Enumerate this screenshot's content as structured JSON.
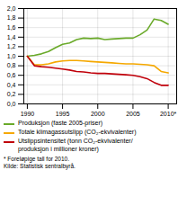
{
  "chart_data": {
    "type": "line",
    "x": [
      1990,
      1991,
      1992,
      1993,
      1994,
      1995,
      1996,
      1997,
      1998,
      1999,
      2000,
      2001,
      2002,
      2003,
      2004,
      2005,
      2006,
      2007,
      2008,
      2009,
      2010
    ],
    "series": [
      {
        "name": "Produksjon (faste 2005-priser)",
        "color": "#6aaa2a",
        "values": [
          1.0,
          1.02,
          1.05,
          1.1,
          1.18,
          1.25,
          1.28,
          1.35,
          1.38,
          1.37,
          1.38,
          1.35,
          1.36,
          1.37,
          1.38,
          1.38,
          1.45,
          1.55,
          1.78,
          1.75,
          1.67
        ]
      },
      {
        "name": "Totale klimagassutslipp (CO₂-ekvivalenter)",
        "color": "#f5a800",
        "values": [
          1.0,
          0.82,
          0.82,
          0.84,
          0.88,
          0.9,
          0.91,
          0.91,
          0.9,
          0.89,
          0.88,
          0.87,
          0.86,
          0.85,
          0.84,
          0.84,
          0.83,
          0.82,
          0.8,
          0.68,
          0.65
        ]
      },
      {
        "name": "Utslippsintensitet (tonn CO₂-ekvivalenter/\nproduksjon i millioner kroner)",
        "color": "#c0000a",
        "values": [
          1.0,
          0.8,
          0.78,
          0.77,
          0.75,
          0.73,
          0.71,
          0.68,
          0.67,
          0.65,
          0.64,
          0.64,
          0.63,
          0.62,
          0.61,
          0.6,
          0.57,
          0.53,
          0.45,
          0.39,
          0.39
        ]
      }
    ],
    "xlim": [
      1989.5,
      2011.2
    ],
    "xticks": [
      1990,
      1995,
      2000,
      2005,
      {
        "value": 2010,
        "label": "2010*"
      }
    ],
    "ylim": [
      0.0,
      2.0
    ],
    "yticks": [
      {
        "value": 0.0,
        "label": "0,0"
      },
      {
        "value": 0.2,
        "label": "0,2"
      },
      {
        "value": 0.4,
        "label": "0,4"
      },
      {
        "value": 0.6,
        "label": "0,6"
      },
      {
        "value": 0.8,
        "label": "0,8"
      },
      {
        "value": 1.0,
        "label": "1,0"
      },
      {
        "value": 1.2,
        "label": "1,2"
      },
      {
        "value": 1.4,
        "label": "1,4"
      },
      {
        "value": 1.6,
        "label": "1,6"
      },
      {
        "value": 1.8,
        "label": "1,8"
      },
      {
        "value": 2.0,
        "label": "2,0"
      }
    ],
    "grid": true,
    "legend": "bottom",
    "annotations": [
      "* Foreløpige tall for 2010.",
      "Kilde: Statistisk sentralbyrå."
    ]
  }
}
